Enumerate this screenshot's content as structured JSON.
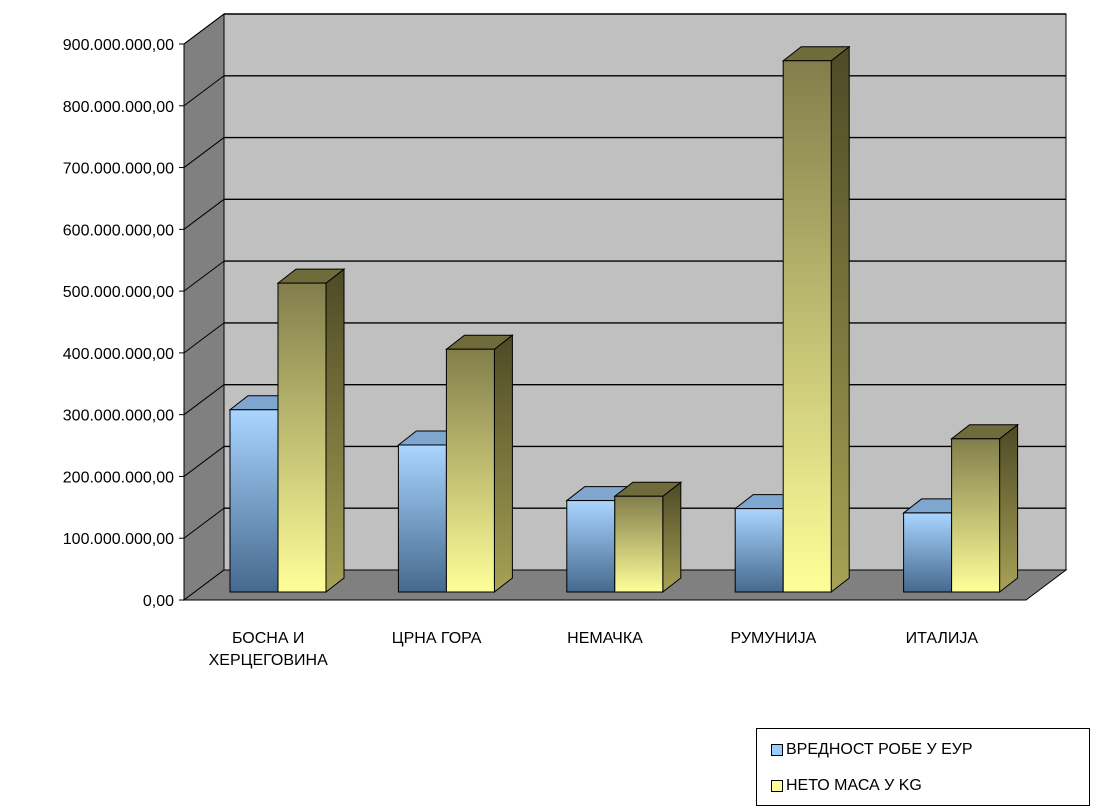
{
  "chart_data": {
    "type": "bar",
    "categories": [
      "БОСНА И ХЕРЦЕГОВИНА",
      "ЦРНА ГОРА",
      "НЕМАЧКА",
      "РУМУНИЈА",
      "ИТАЛИЈА"
    ],
    "category_lines": [
      [
        "БОСНА И",
        "ХЕРЦЕГОВИНА"
      ],
      [
        "ЦРНА ГОРА"
      ],
      [
        "НЕМАЧКА"
      ],
      [
        "РУМУНИЈА"
      ],
      [
        "ИТАЛИЈА"
      ]
    ],
    "series": [
      {
        "name": "ВРЕДНОСТ РОБЕ У ЕУР",
        "values": [
          295000000,
          238000000,
          148000000,
          135000000,
          128000000
        ],
        "color": "#99ccff"
      },
      {
        "name": "НЕТО МАСА У KG",
        "values": [
          500000000,
          393000000,
          155000000,
          860000000,
          248000000
        ],
        "color": "#ffff99"
      }
    ],
    "y_ticks": [
      "0,00",
      "100.000.000,00",
      "200.000.000,00",
      "300.000.000,00",
      "400.000.000,00",
      "500.000.000,00",
      "600.000.000,00",
      "700.000.000,00",
      "800.000.000,00",
      "900.000.000,00"
    ],
    "ylim": [
      0,
      900000000
    ],
    "grid": true,
    "legend_position": "bottom-right",
    "style": "3d-clustered-column"
  }
}
